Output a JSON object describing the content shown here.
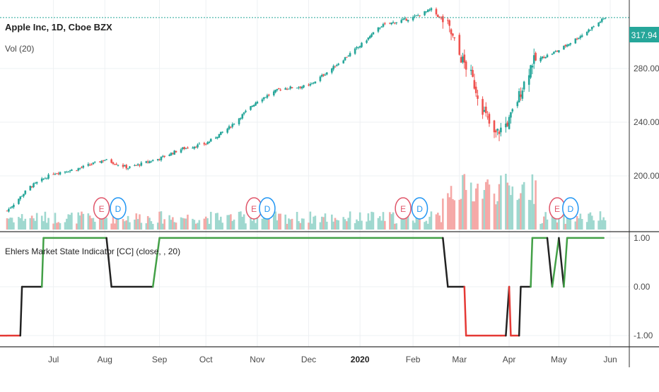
{
  "header": {
    "symbol_title": "Apple Inc, 1D, Cboe BZX",
    "volume_label": "Vol (20)",
    "indicator_label": "Ehlers Market State Indicator [CC] (close, , 20)"
  },
  "price_badge": {
    "value": "317.94",
    "color": "#26a69a"
  },
  "colors": {
    "up": "#26a69a",
    "down": "#ef5350",
    "vol_up": "#9fd8cf",
    "vol_down": "#f5a9a7",
    "state_up": "#43a047",
    "state_down": "#e53935",
    "state_neutral": "#222222",
    "earnings": "#e0566a",
    "dividend": "#2196f3"
  },
  "chart_data": [
    {
      "type": "line",
      "title": "Apple Inc, 1D, Cboe BZX",
      "x_axis": [
        "Jul",
        "Aug",
        "Sep",
        "Oct",
        "Nov",
        "Dec",
        "2020",
        "Feb",
        "Mar",
        "Apr",
        "May",
        "Jun"
      ],
      "x": [
        "2019-06-03",
        "2019-06-17",
        "2019-07-01",
        "2019-07-15",
        "2019-08-01",
        "2019-08-15",
        "2019-09-03",
        "2019-09-16",
        "2019-10-01",
        "2019-10-15",
        "2019-11-01",
        "2019-11-15",
        "2019-12-02",
        "2019-12-16",
        "2020-01-02",
        "2020-01-15",
        "2020-02-03",
        "2020-02-14",
        "2020-02-24",
        "2020-03-02",
        "2020-03-09",
        "2020-03-16",
        "2020-03-23",
        "2020-04-01",
        "2020-04-15",
        "2020-04-30",
        "2020-05-15",
        "2020-05-29"
      ],
      "y": [
        174,
        192,
        202,
        205,
        212,
        206,
        213,
        220,
        224,
        236,
        256,
        265,
        267,
        280,
        297,
        312,
        318,
        324,
        312,
        290,
        275,
        250,
        230,
        241,
        285,
        293,
        305,
        317.94
      ],
      "y_ticks": [
        "200.00",
        "240.00",
        "280.00"
      ],
      "ylim": [
        160,
        330
      ],
      "last_price": "317.94",
      "volume_label": "Vol (20)",
      "events": [
        {
          "label": "E",
          "date": "2019-07-30"
        },
        {
          "label": "D",
          "date": "2019-08-09"
        },
        {
          "label": "E",
          "date": "2019-10-30"
        },
        {
          "label": "D",
          "date": "2019-11-07"
        },
        {
          "label": "E",
          "date": "2020-01-28"
        },
        {
          "label": "D",
          "date": "2020-02-07"
        },
        {
          "label": "E",
          "date": "2020-04-30"
        },
        {
          "label": "D",
          "date": "2020-05-08"
        }
      ]
    },
    {
      "type": "line",
      "title": "Ehlers Market State Indicator [CC] (close, , 20)",
      "x_axis": [
        "Jul",
        "Aug",
        "Sep",
        "Oct",
        "Nov",
        "Dec",
        "2020",
        "Feb",
        "Mar",
        "Apr",
        "May",
        "Jun"
      ],
      "y_ticks": [
        "1.00",
        "0.00",
        "-1.00"
      ],
      "ylim": [
        -1.2,
        1.1
      ],
      "x": [
        "2019-06-03",
        "2019-06-11",
        "2019-06-12",
        "2019-06-24",
        "2019-06-25",
        "2019-08-02",
        "2019-08-05",
        "2019-08-30",
        "2019-09-03",
        "2020-02-21",
        "2020-02-24",
        "2020-03-05",
        "2020-03-06",
        "2020-03-27",
        "2020-03-30",
        "2020-04-01",
        "2020-04-02",
        "2020-04-07",
        "2020-04-08",
        "2020-04-14",
        "2020-04-15",
        "2020-04-24",
        "2020-04-27",
        "2020-05-01",
        "2020-05-04",
        "2020-05-06",
        "2020-05-07",
        "2020-05-28"
      ],
      "y": [
        -1,
        -1,
        0,
        0,
        1,
        1,
        0,
        0,
        1,
        1,
        0,
        0,
        -1,
        -1,
        -1,
        0,
        -1,
        -1,
        0,
        0,
        1,
        1,
        0,
        1,
        0,
        1,
        1,
        1
      ]
    }
  ]
}
